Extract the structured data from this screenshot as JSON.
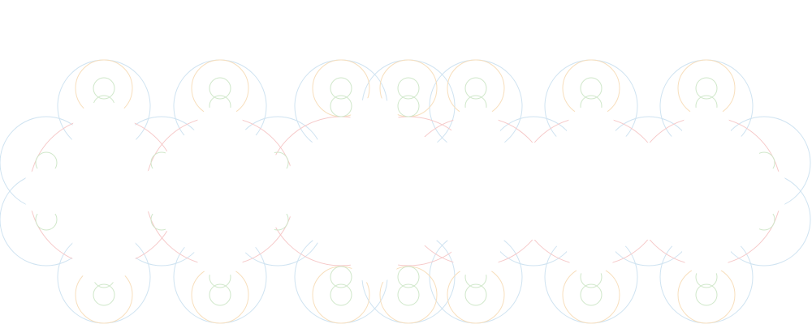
{
  "palette": {
    "background": "#ffffff",
    "blue": "#cfe3f1",
    "green": "#cfe7c9",
    "red": "#f6c9c9",
    "orange": "#f8dfbd"
  }
}
